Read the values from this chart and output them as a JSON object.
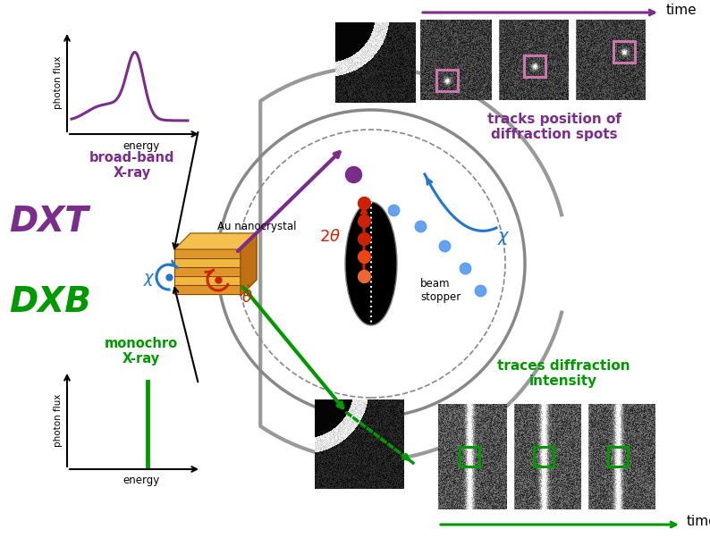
{
  "bg_color": "#ffffff",
  "purple": "#7b2d8b",
  "green": "#009900",
  "blue": "#2277cc",
  "red": "#cc2200",
  "orange_box": "#e8a030",
  "pink": "#cc77aa",
  "dxt_label": "DXT",
  "dxb_label": "DXB",
  "broadband_label": "broad-band\nX-ray",
  "monochro_label": "monochro\nX-ray",
  "photon_flux_label": "photon flux",
  "energy_label": "energy",
  "au_label": "Au nanocrystal",
  "beam_stopper_label": "beam\nstopper",
  "tracks_label": "tracks position of\ndiffraction spots",
  "traces_label": "traces diffraction\nintensity",
  "time_label": "time"
}
